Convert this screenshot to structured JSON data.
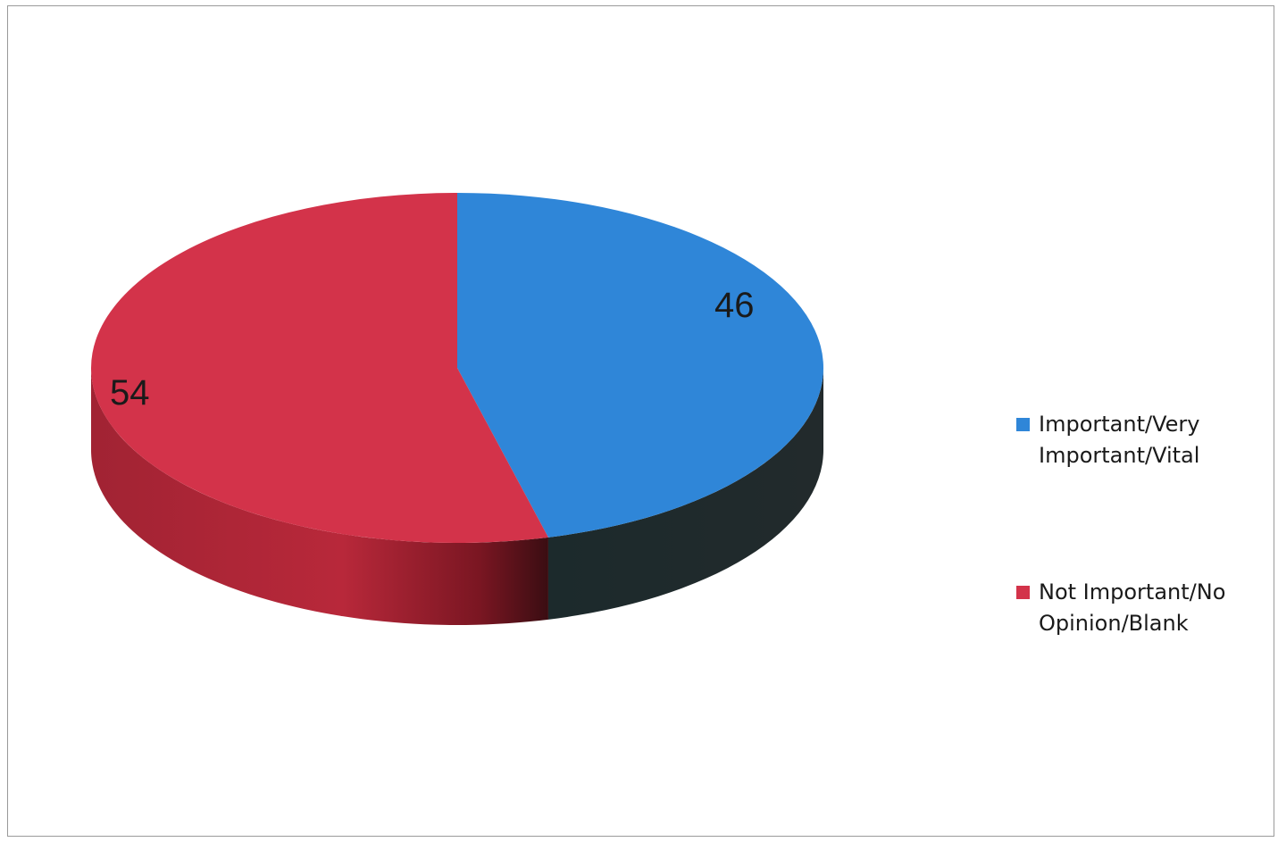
{
  "chart_data": {
    "type": "pie",
    "style": "3d",
    "title": "",
    "categories": [
      "Important/Very Important/Vital",
      "Not Important/No Opinion/Blank"
    ],
    "values": [
      46,
      54
    ],
    "data_labels": [
      "46",
      "54"
    ],
    "colors": [
      "#2f86d8",
      "#d3334a"
    ],
    "legend": {
      "placement": "right",
      "entries": [
        {
          "label_line1": "Important/Very",
          "label_line2": "Important/Vital",
          "color": "#2f86d8"
        },
        {
          "label_line1": "Not Important/No",
          "label_line2": "Opinion/Blank",
          "color": "#d3334a"
        }
      ]
    }
  }
}
